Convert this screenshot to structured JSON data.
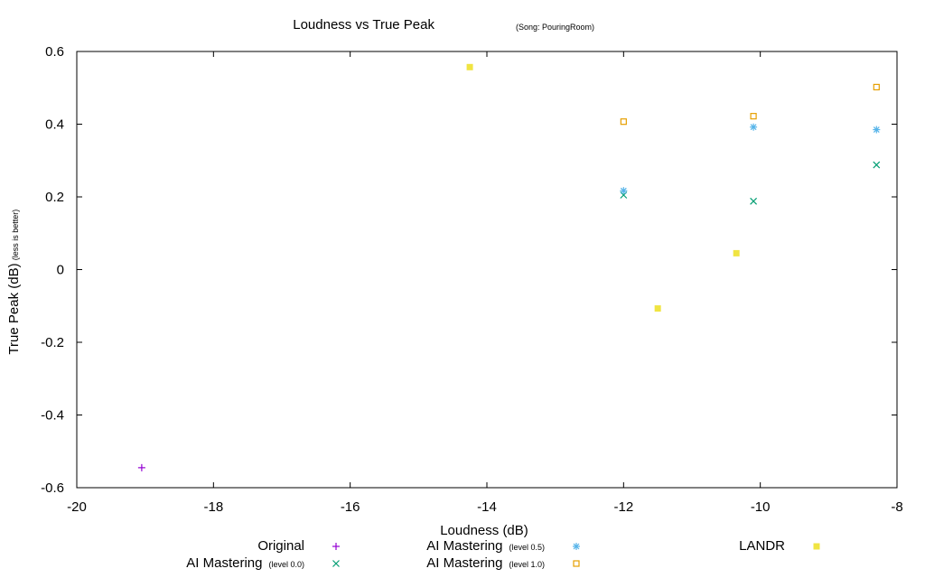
{
  "chart_data": {
    "type": "scatter",
    "title": "Loudness vs True Peak",
    "subtitle": "(Song: PouringRoom)",
    "xlabel": "Loudness (dB)",
    "ylabel": "True Peak (dB)",
    "ylabel_note": "(less is better)",
    "xlim": [
      -20,
      -8
    ],
    "ylim": [
      -0.6,
      0.6
    ],
    "x_ticks": [
      -20,
      -18,
      -16,
      -14,
      -12,
      -10,
      -8
    ],
    "y_ticks": [
      -0.6,
      -0.4,
      -0.2,
      0,
      0.2,
      0.4,
      0.6
    ],
    "x_tick_labels": [
      "-20",
      "-18",
      "-16",
      "-14",
      "-12",
      "-10",
      "-8"
    ],
    "y_tick_labels": [
      "-0.6",
      "-0.4",
      "-0.2",
      "0",
      "0.2",
      "0.4",
      "0.6"
    ],
    "grid": false,
    "legend_position": "bottom",
    "series": [
      {
        "name": "Original",
        "name_note": "",
        "marker": "plus",
        "color": "#9400d3",
        "points": [
          {
            "x": -19.05,
            "y": -0.545
          }
        ]
      },
      {
        "name": "AI Mastering",
        "name_note": "(level 0.0)",
        "marker": "cross",
        "color": "#009e73",
        "points": [
          {
            "x": -12.0,
            "y": 0.205
          },
          {
            "x": -10.1,
            "y": 0.188
          },
          {
            "x": -8.3,
            "y": 0.288
          }
        ]
      },
      {
        "name": "AI Mastering",
        "name_note": "(level 0.5)",
        "marker": "star",
        "color": "#56b4e9",
        "points": [
          {
            "x": -12.0,
            "y": 0.217
          },
          {
            "x": -10.1,
            "y": 0.392
          },
          {
            "x": -8.3,
            "y": 0.385
          }
        ]
      },
      {
        "name": "AI Mastering",
        "name_note": "(level 1.0)",
        "marker": "open-square",
        "color": "#e69f00",
        "points": [
          {
            "x": -12.0,
            "y": 0.407
          },
          {
            "x": -10.1,
            "y": 0.422
          },
          {
            "x": -8.3,
            "y": 0.502
          }
        ]
      },
      {
        "name": "LANDR",
        "name_note": "",
        "marker": "filled-square",
        "color": "#f0e442",
        "points": [
          {
            "x": -14.25,
            "y": 0.557
          },
          {
            "x": -11.5,
            "y": -0.107
          },
          {
            "x": -10.35,
            "y": 0.045
          }
        ]
      }
    ]
  }
}
